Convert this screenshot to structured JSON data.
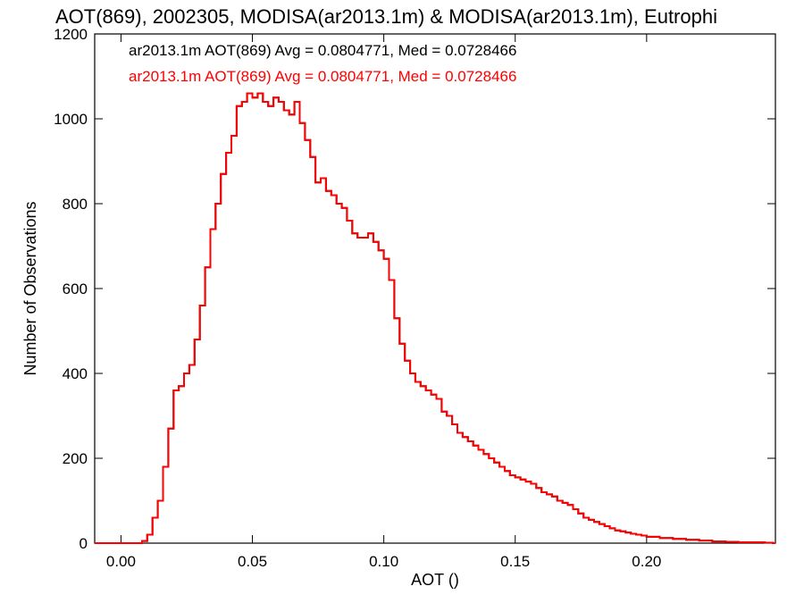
{
  "colors": {
    "series_black": "#000000",
    "series_red": "#ff0000",
    "axis": "#000000"
  },
  "chart_data": {
    "type": "histogram",
    "title": "AOT(869), 2002305, MODISA(ar2013.1m) & MODISA(ar2013.1m), Eutrophi",
    "xlabel": "AOT ()",
    "ylabel": "Number of Observations",
    "xlim": [
      -0.01,
      0.249
    ],
    "ylim": [
      0,
      1200
    ],
    "xticks": [
      "0.00",
      "0.05",
      "0.10",
      "0.15",
      "0.20"
    ],
    "xtick_values": [
      0.0,
      0.05,
      0.1,
      0.15,
      0.2
    ],
    "yticks": [
      "0",
      "200",
      "400",
      "600",
      "800",
      "1000",
      "1200"
    ],
    "ytick_values": [
      0,
      200,
      400,
      600,
      800,
      1000,
      1200
    ],
    "grid": false,
    "legend": [
      {
        "text": "ar2013.1m AOT(869) Avg = 0.0804771, Med = 0.0728466",
        "color": "#000000"
      },
      {
        "text": "ar2013.1m AOT(869) Avg = 0.0804771, Med = 0.0728466",
        "color": "#ff0000"
      }
    ],
    "x": [
      -0.01,
      0.0,
      0.004,
      0.008,
      0.01,
      0.012,
      0.014,
      0.016,
      0.018,
      0.02,
      0.022,
      0.024,
      0.026,
      0.028,
      0.03,
      0.032,
      0.034,
      0.036,
      0.038,
      0.04,
      0.042,
      0.044,
      0.046,
      0.048,
      0.05,
      0.052,
      0.054,
      0.056,
      0.058,
      0.06,
      0.062,
      0.064,
      0.066,
      0.068,
      0.07,
      0.072,
      0.074,
      0.076,
      0.078,
      0.08,
      0.082,
      0.084,
      0.086,
      0.088,
      0.09,
      0.092,
      0.094,
      0.096,
      0.098,
      0.1,
      0.102,
      0.104,
      0.106,
      0.108,
      0.11,
      0.112,
      0.114,
      0.116,
      0.118,
      0.12,
      0.122,
      0.124,
      0.126,
      0.128,
      0.13,
      0.132,
      0.134,
      0.136,
      0.138,
      0.14,
      0.142,
      0.144,
      0.146,
      0.148,
      0.15,
      0.152,
      0.154,
      0.156,
      0.158,
      0.16,
      0.162,
      0.164,
      0.166,
      0.168,
      0.17,
      0.172,
      0.174,
      0.176,
      0.178,
      0.18,
      0.182,
      0.184,
      0.186,
      0.188,
      0.19,
      0.192,
      0.194,
      0.196,
      0.198,
      0.2,
      0.205,
      0.21,
      0.215,
      0.22,
      0.225,
      0.23,
      0.235,
      0.24,
      0.245,
      0.248
    ],
    "series": [
      {
        "name": "",
        "values": [
          0,
          0,
          0,
          5,
          20,
          60,
          100,
          180,
          270,
          360,
          370,
          400,
          420,
          480,
          560,
          650,
          740,
          800,
          870,
          920,
          960,
          1030,
          1040,
          1060,
          1050,
          1060,
          1040,
          1030,
          1050,
          1040,
          1020,
          1010,
          1040,
          990,
          950,
          910,
          850,
          860,
          830,
          820,
          800,
          790,
          760,
          730,
          720,
          720,
          730,
          710,
          690,
          670,
          620,
          530,
          470,
          430,
          400,
          380,
          370,
          360,
          350,
          340,
          310,
          300,
          280,
          260,
          250,
          240,
          230,
          220,
          210,
          200,
          190,
          180,
          170,
          160,
          155,
          150,
          145,
          140,
          130,
          120,
          115,
          110,
          100,
          95,
          90,
          80,
          70,
          60,
          55,
          50,
          45,
          40,
          35,
          30,
          28,
          25,
          22,
          20,
          18,
          15,
          12,
          10,
          8,
          6,
          4,
          3,
          2,
          2,
          1,
          0
        ]
      }
    ]
  }
}
